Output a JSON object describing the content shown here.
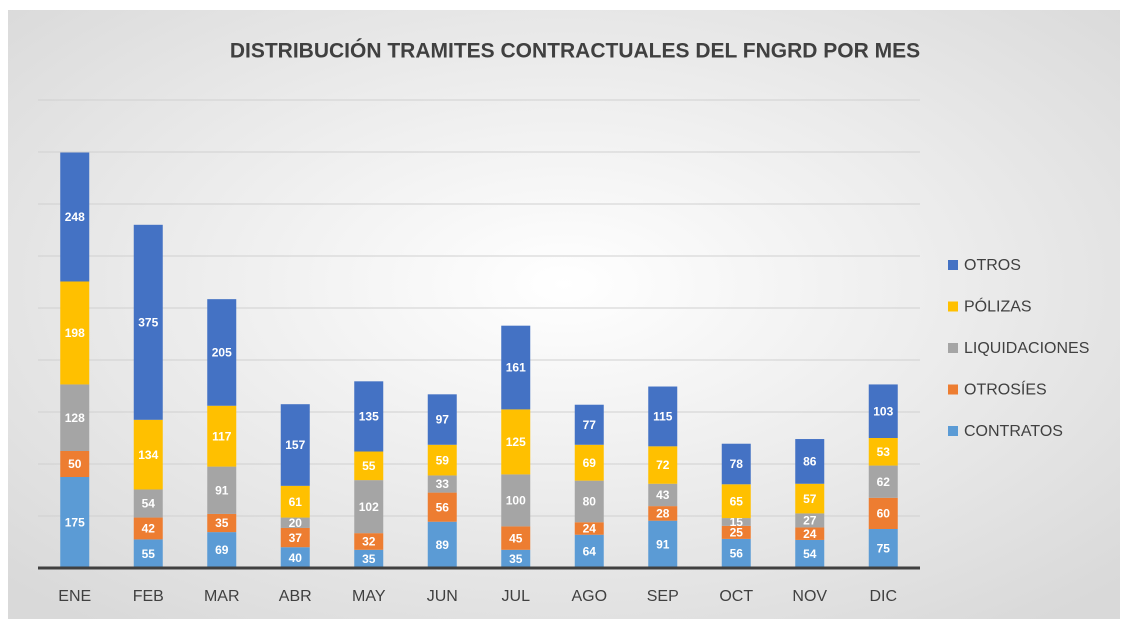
{
  "chart_data": {
    "type": "stacked_bar",
    "title": "DISTRIBUCIÓN TRAMITES CONTRACTUALES DEL FNGRD POR MES",
    "categories": [
      "ENE",
      "FEB",
      "MAR",
      "ABR",
      "MAY",
      "JUN",
      "JUL",
      "AGO",
      "SEP",
      "OCT",
      "NOV",
      "DIC"
    ],
    "series": [
      {
        "name": "CONTRATOS",
        "color": "#5b9bd5",
        "values": [
          175,
          55,
          69,
          40,
          35,
          89,
          35,
          64,
          91,
          56,
          54,
          75
        ]
      },
      {
        "name": "OTROSÍES",
        "color": "#ed7d31",
        "values": [
          50,
          42,
          35,
          37,
          32,
          56,
          45,
          24,
          28,
          25,
          24,
          60
        ]
      },
      {
        "name": "LIQUIDACIONES",
        "color": "#a5a5a5",
        "values": [
          128,
          54,
          91,
          20,
          102,
          33,
          100,
          80,
          43,
          15,
          27,
          62
        ]
      },
      {
        "name": "PÓLIZAS",
        "color": "#ffc000",
        "values": [
          198,
          134,
          117,
          61,
          55,
          59,
          125,
          69,
          72,
          65,
          57,
          53
        ]
      },
      {
        "name": "OTROS",
        "color": "#4472c4",
        "values": [
          248,
          375,
          205,
          157,
          135,
          97,
          161,
          77,
          115,
          78,
          86,
          103
        ]
      }
    ],
    "ylim": [
      0,
      900
    ],
    "yticks": [
      0,
      100,
      200,
      300,
      400,
      500,
      600,
      700,
      800,
      900
    ],
    "grid": true,
    "legend": "right"
  }
}
